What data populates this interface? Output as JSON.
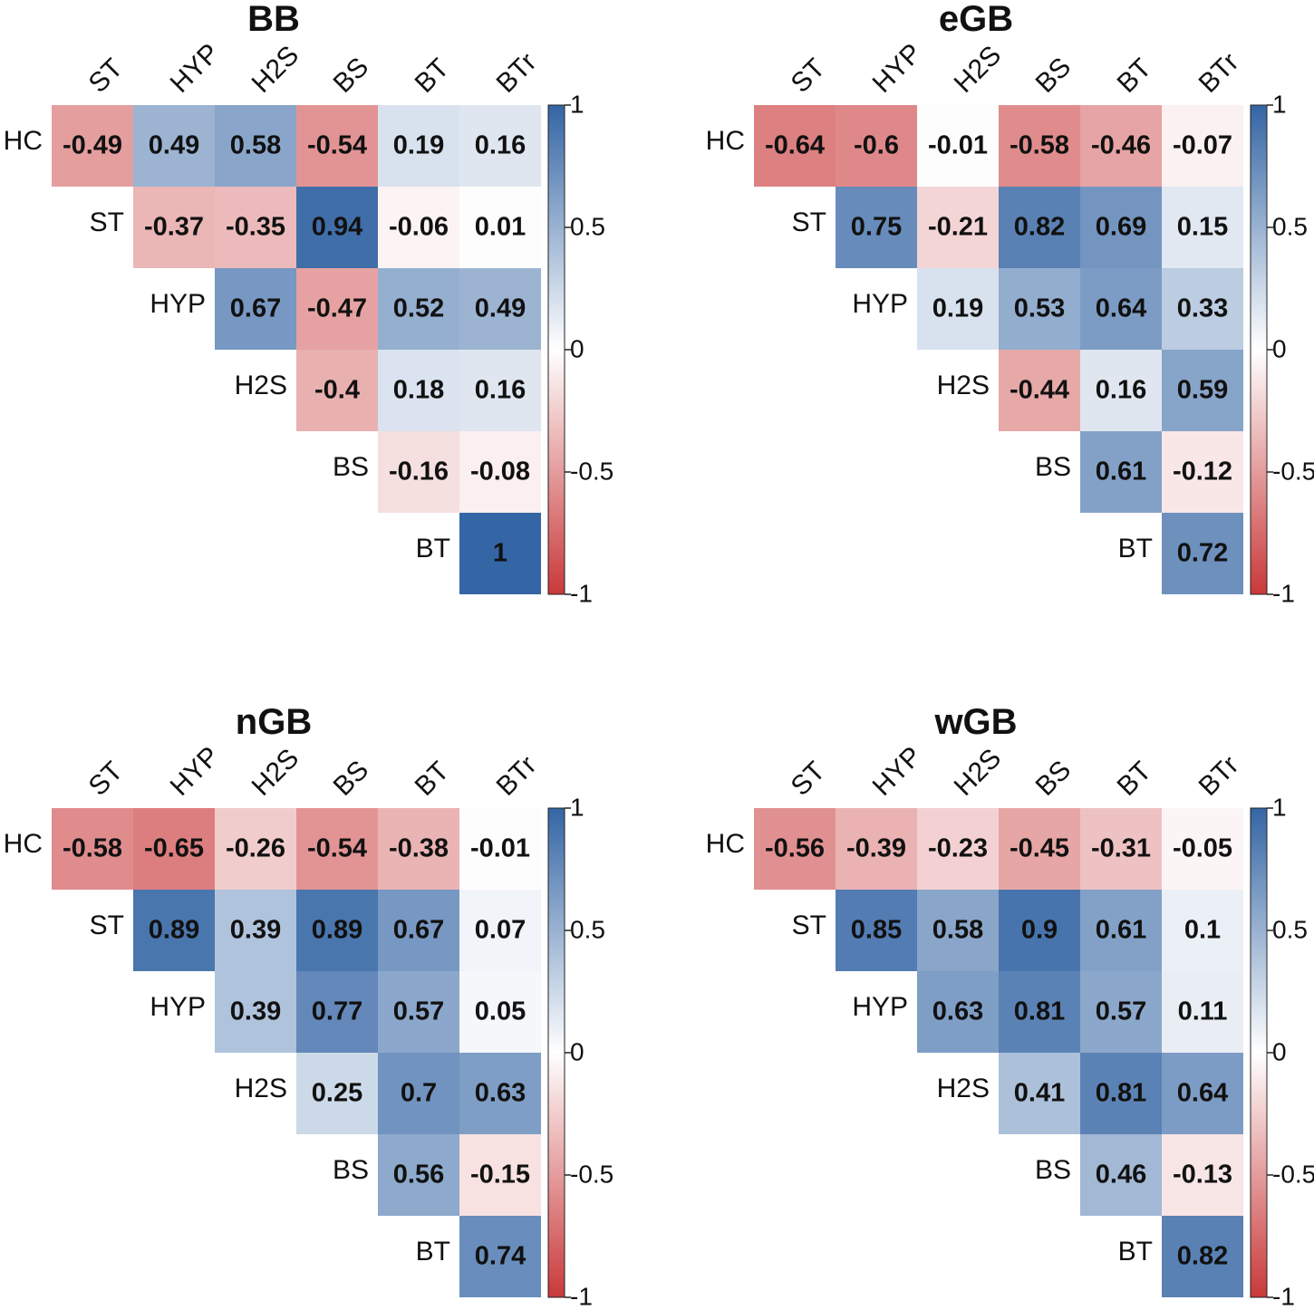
{
  "chart_data": [
    {
      "type": "heatmap",
      "title": "BB",
      "columns": [
        "ST",
        "HYP",
        "H2S",
        "BS",
        "BT",
        "BTr"
      ],
      "rows": [
        "HC",
        "ST",
        "HYP",
        "H2S",
        "BS",
        "BT"
      ],
      "values": [
        [
          -0.49,
          0.49,
          0.58,
          -0.54,
          0.19,
          0.16
        ],
        [
          null,
          -0.37,
          -0.35,
          0.94,
          -0.06,
          0.01
        ],
        [
          null,
          null,
          0.67,
          -0.47,
          0.52,
          0.49
        ],
        [
          null,
          null,
          null,
          -0.4,
          0.18,
          0.16
        ],
        [
          null,
          null,
          null,
          null,
          -0.16,
          -0.08
        ],
        [
          null,
          null,
          null,
          null,
          null,
          1
        ]
      ],
      "colorbar": {
        "range": [
          -1,
          1
        ],
        "ticks": [
          "1",
          "0.5",
          "0",
          "-0.5",
          "-1"
        ]
      }
    },
    {
      "type": "heatmap",
      "title": "eGB",
      "columns": [
        "ST",
        "HYP",
        "H2S",
        "BS",
        "BT",
        "BTr"
      ],
      "rows": [
        "HC",
        "ST",
        "HYP",
        "H2S",
        "BS",
        "BT"
      ],
      "values": [
        [
          -0.64,
          -0.6,
          -0.01,
          -0.58,
          -0.46,
          -0.07
        ],
        [
          null,
          0.75,
          -0.21,
          0.82,
          0.69,
          0.15
        ],
        [
          null,
          null,
          0.19,
          0.53,
          0.64,
          0.33
        ],
        [
          null,
          null,
          null,
          -0.44,
          0.16,
          0.59
        ],
        [
          null,
          null,
          null,
          null,
          0.61,
          -0.12
        ],
        [
          null,
          null,
          null,
          null,
          null,
          0.72
        ]
      ],
      "colorbar": {
        "range": [
          -1,
          1
        ],
        "ticks": [
          "1",
          "0.5",
          "0",
          "-0.5",
          "-1"
        ]
      }
    },
    {
      "type": "heatmap",
      "title": "nGB",
      "columns": [
        "ST",
        "HYP",
        "H2S",
        "BS",
        "BT",
        "BTr"
      ],
      "rows": [
        "HC",
        "ST",
        "HYP",
        "H2S",
        "BS",
        "BT"
      ],
      "values": [
        [
          -0.58,
          -0.65,
          -0.26,
          -0.54,
          -0.38,
          -0.01
        ],
        [
          null,
          0.89,
          0.39,
          0.89,
          0.67,
          0.07
        ],
        [
          null,
          null,
          0.39,
          0.77,
          0.57,
          0.05
        ],
        [
          null,
          null,
          null,
          0.25,
          0.7,
          0.63
        ],
        [
          null,
          null,
          null,
          null,
          0.56,
          -0.15
        ],
        [
          null,
          null,
          null,
          null,
          null,
          0.74
        ]
      ],
      "colorbar": {
        "range": [
          -1,
          1
        ],
        "ticks": [
          "1",
          "0.5",
          "0",
          "-0.5",
          "-1"
        ]
      }
    },
    {
      "type": "heatmap",
      "title": "wGB",
      "columns": [
        "ST",
        "HYP",
        "H2S",
        "BS",
        "BT",
        "BTr"
      ],
      "rows": [
        "HC",
        "ST",
        "HYP",
        "H2S",
        "BS",
        "BT"
      ],
      "values": [
        [
          -0.56,
          -0.39,
          -0.23,
          -0.45,
          -0.31,
          -0.05
        ],
        [
          null,
          0.85,
          0.58,
          0.9,
          0.61,
          0.1
        ],
        [
          null,
          null,
          0.63,
          0.81,
          0.57,
          0.11
        ],
        [
          null,
          null,
          null,
          0.41,
          0.81,
          0.64
        ],
        [
          null,
          null,
          null,
          null,
          0.46,
          -0.13
        ],
        [
          null,
          null,
          null,
          null,
          null,
          0.82
        ]
      ],
      "colorbar": {
        "range": [
          -1,
          1
        ],
        "ticks": [
          "1",
          "0.5",
          "0",
          "-0.5",
          "-1"
        ]
      }
    }
  ],
  "colors": {
    "negative": "#c9393a",
    "neutral": "#ffffff",
    "positive": "#3465a4"
  }
}
